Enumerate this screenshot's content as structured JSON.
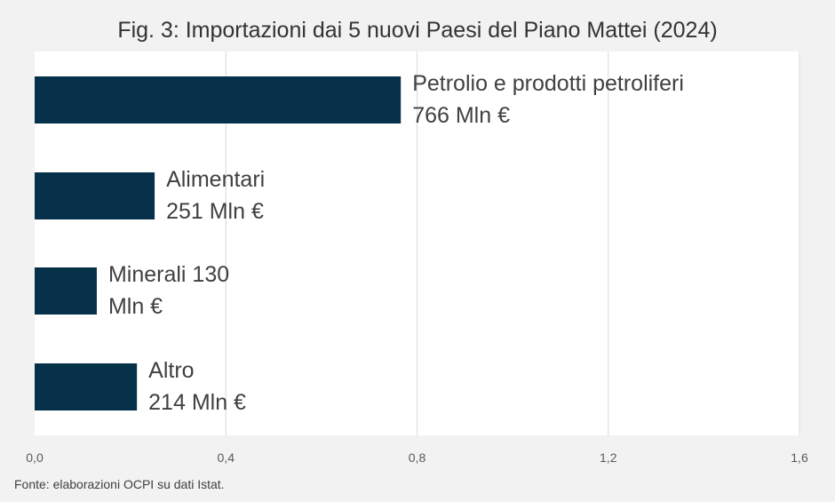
{
  "chart_data": {
    "type": "bar",
    "orientation": "horizontal",
    "title": "Fig. 3: Importazioni dai 5 nuovi Paesi del Piano Mattei (2024)",
    "categories": [
      "Petrolio e prodotti petroliferi",
      "Alimentari",
      "Minerali",
      "Altro"
    ],
    "values": [
      0.766,
      0.251,
      0.13,
      0.214
    ],
    "data_labels": [
      [
        "Petrolio e prodotti petroliferi",
        "766 Mln €"
      ],
      [
        "Alimentari",
        "251 Mln €"
      ],
      [
        "Minerali 130",
        "Mln €"
      ],
      [
        "Altro",
        "214 Mln €"
      ]
    ],
    "x_ticks": [
      "0,0",
      "0,4",
      "0,8",
      "1,2",
      "1,6"
    ],
    "xlim": [
      0,
      1.6
    ],
    "grid": "vertical",
    "legend": "none",
    "source": "Fonte: elaborazioni OCPI su dati Istat.",
    "colors": {
      "bar": "#073049",
      "gridline": "#d9d9d9",
      "plot_background": "#ffffff",
      "page_background": "#f2f2f2"
    }
  }
}
